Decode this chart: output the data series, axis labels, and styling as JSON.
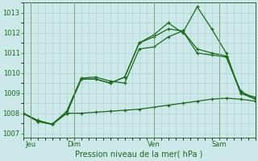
{
  "bg_color": "#cce8e8",
  "plot_bg": "#cce8e8",
  "grid_color": "#aacccc",
  "line_color": "#1a6b1a",
  "title": "Pression niveau de la mer( hPa )",
  "ylim": [
    1006.8,
    1013.5
  ],
  "yticks": [
    1007,
    1008,
    1009,
    1010,
    1011,
    1012,
    1013
  ],
  "xlim": [
    0,
    16
  ],
  "day_labels": [
    "Jeu",
    "Dim",
    "Ven",
    "Sam"
  ],
  "day_positions": [
    0.5,
    3.5,
    9.0,
    13.5
  ],
  "vline_positions": [
    0.5,
    3.5,
    9.0,
    13.5
  ],
  "series": [
    [
      1008.0,
      1007.65,
      1007.45,
      1008.0,
      1008.0,
      1008.05,
      1008.1,
      1008.15,
      1008.2,
      1008.3,
      1008.4,
      1008.5,
      1008.6,
      1008.7,
      1008.75,
      1008.7,
      1008.6
    ],
    [
      1008.0,
      1007.6,
      1007.45,
      1008.0,
      1009.7,
      1009.7,
      1009.5,
      1009.8,
      1011.5,
      1011.9,
      1012.5,
      1012.0,
      1013.3,
      1012.2,
      1011.0,
      1009.0,
      1008.8
    ],
    [
      1008.0,
      1007.6,
      1007.45,
      1008.0,
      1009.7,
      1009.7,
      1009.5,
      1009.8,
      1011.5,
      1011.8,
      1012.2,
      1012.1,
      1011.2,
      1011.0,
      1010.85,
      1009.0,
      1008.7
    ],
    [
      1008.0,
      1007.6,
      1007.45,
      1008.1,
      1009.75,
      1009.8,
      1009.6,
      1009.5,
      1011.2,
      1011.3,
      1011.8,
      1012.1,
      1011.0,
      1010.9,
      1010.8,
      1009.1,
      1008.7
    ]
  ],
  "marker": "+",
  "markersize": 3,
  "linewidth": 0.9,
  "title_fontsize": 7,
  "tick_fontsize": 6
}
